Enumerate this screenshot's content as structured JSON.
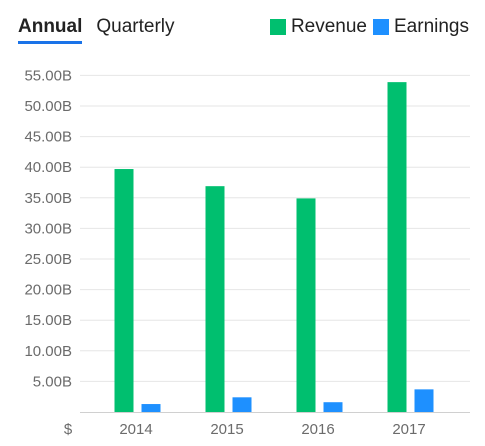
{
  "tabs": [
    {
      "label": "Annual",
      "active": true
    },
    {
      "label": "Quarterly",
      "active": false
    }
  ],
  "chart_data": {
    "type": "bar",
    "categories": [
      "2014",
      "2015",
      "2016",
      "2017"
    ],
    "series": [
      {
        "name": "Revenue",
        "color": "#00bf6f",
        "values": [
          39.7,
          36.9,
          34.9,
          53.9
        ]
      },
      {
        "name": "Earnings",
        "color": "#1e90ff",
        "values": [
          1.3,
          2.4,
          1.6,
          3.7
        ]
      }
    ],
    "y_ticks": [
      "5.00B",
      "10.00B",
      "15.00B",
      "20.00B",
      "25.00B",
      "30.00B",
      "35.00B",
      "40.00B",
      "45.00B",
      "50.00B",
      "55.00B"
    ],
    "y_unit_label": "$",
    "ylim": [
      0,
      55
    ],
    "grid": true,
    "legend_position": "top-right"
  }
}
